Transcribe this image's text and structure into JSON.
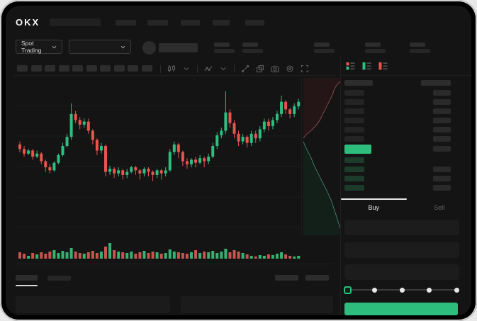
{
  "navbar": {
    "logo": "OKX",
    "nav_item_count": 5
  },
  "subheader": {
    "market_type_selector": {
      "label": "Spot Trading",
      "has_chevron": true
    },
    "pair_selector": {
      "value": "",
      "has_chevron": true
    },
    "stat_placeholder_count": 5
  },
  "toolbar": {
    "interval_placeholder_count": 10,
    "icons": [
      "divider",
      "candles-icon",
      "chevron-down-icon",
      "divider",
      "indicator-icon",
      "chevron-down-icon",
      "divider",
      "trendline-icon",
      "layers-icon",
      "camera-icon",
      "settings-icon",
      "fullscreen-icon"
    ]
  },
  "orderbook": {
    "view_mode_icons": [
      "book-split-icon",
      "book-bids-only-icon",
      "book-asks-only-icon"
    ],
    "ask_row_count": 6,
    "bid_row_count": 4,
    "bid_rows_with_amount": [
      1,
      2,
      3
    ],
    "last_price_highlight_color": "#2dbd7c"
  },
  "trade_panel": {
    "tabs": [
      {
        "label": "Buy",
        "active": true
      },
      {
        "label": "Sell",
        "active": false
      }
    ],
    "input_placeholder_count": 3,
    "slider_percents": [
      0,
      25,
      50,
      75,
      100
    ],
    "submit_button": {
      "label": "",
      "color": "#2dbd7c"
    }
  },
  "bottom_panel": {
    "tab_placeholder_count": 2,
    "active_tab_index": 0,
    "right_placeholder_count": 2,
    "content_placeholder_count": 2
  },
  "colors": {
    "app_bg": "#141414",
    "accent_green": "#2dbd7c",
    "candle_up": "#2ebd7f",
    "candle_down": "#e8544e",
    "depth_ask_line": "#9c5b57",
    "depth_ask_fill": "#241517",
    "depth_bid_line": "#4e8f7f",
    "depth_bid_fill": "#122019"
  },
  "chart_data": {
    "type": "candlestick",
    "title": "",
    "note": "No numeric axis labels visible (skeleton UI); OHLC values normalized to 0-100 price scale, left to right in time.",
    "grid_y_lines": 5,
    "ylim": [
      0,
      100
    ],
    "candles": [
      [
        61,
        58,
        56,
        63
      ],
      [
        58,
        55,
        53,
        60
      ],
      [
        55,
        57,
        54,
        58
      ],
      [
        57,
        53,
        51,
        58
      ],
      [
        53,
        55,
        52,
        57
      ],
      [
        55,
        50,
        48,
        56
      ],
      [
        50,
        46,
        43,
        51
      ],
      [
        46,
        44,
        42,
        48
      ],
      [
        44,
        49,
        43,
        50
      ],
      [
        49,
        54,
        48,
        55
      ],
      [
        54,
        60,
        53,
        62
      ],
      [
        60,
        66,
        59,
        68
      ],
      [
        66,
        81,
        64,
        88
      ],
      [
        81,
        77,
        75,
        83
      ],
      [
        77,
        74,
        71,
        79
      ],
      [
        74,
        76,
        72,
        78
      ],
      [
        76,
        70,
        68,
        78
      ],
      [
        70,
        64,
        61,
        71
      ],
      [
        64,
        57,
        54,
        65
      ],
      [
        57,
        60,
        55,
        62
      ],
      [
        60,
        43,
        40,
        61
      ],
      [
        43,
        45,
        41,
        47
      ],
      [
        45,
        42,
        39,
        46
      ],
      [
        42,
        44,
        40,
        46
      ],
      [
        44,
        41,
        38,
        45
      ],
      [
        41,
        43,
        39,
        45
      ],
      [
        43,
        46,
        42,
        47
      ],
      [
        46,
        44,
        41,
        47
      ],
      [
        44,
        42,
        38,
        45
      ],
      [
        42,
        45,
        40,
        46
      ],
      [
        45,
        43,
        40,
        46
      ],
      [
        43,
        41,
        37,
        44
      ],
      [
        41,
        44,
        39,
        45
      ],
      [
        44,
        42,
        38,
        45
      ],
      [
        42,
        44,
        40,
        46
      ],
      [
        44,
        56,
        43,
        58
      ],
      [
        56,
        61,
        54,
        63
      ],
      [
        61,
        56,
        52,
        62
      ],
      [
        56,
        50,
        47,
        57
      ],
      [
        50,
        48,
        45,
        52
      ],
      [
        48,
        51,
        46,
        52
      ],
      [
        51,
        49,
        46,
        53
      ],
      [
        49,
        52,
        48,
        54
      ],
      [
        52,
        50,
        46,
        53
      ],
      [
        50,
        53,
        48,
        55
      ],
      [
        53,
        60,
        52,
        62
      ],
      [
        60,
        67,
        58,
        69
      ],
      [
        67,
        70,
        65,
        72
      ],
      [
        70,
        82,
        68,
        96
      ],
      [
        82,
        75,
        72,
        84
      ],
      [
        75,
        68,
        65,
        77
      ],
      [
        68,
        63,
        60,
        70
      ],
      [
        63,
        66,
        61,
        68
      ],
      [
        66,
        62,
        59,
        67
      ],
      [
        62,
        68,
        60,
        70
      ],
      [
        68,
        65,
        62,
        70
      ],
      [
        65,
        71,
        63,
        73
      ],
      [
        71,
        76,
        69,
        78
      ],
      [
        76,
        73,
        70,
        78
      ],
      [
        73,
        77,
        71,
        79
      ],
      [
        77,
        81,
        75,
        83
      ],
      [
        81,
        89,
        79,
        93
      ],
      [
        89,
        84,
        81,
        90
      ],
      [
        84,
        81,
        78,
        85
      ],
      [
        81,
        86,
        79,
        88
      ],
      [
        86,
        89,
        84,
        91
      ]
    ],
    "volume": [
      9,
      7,
      4,
      8,
      6,
      9,
      7,
      10,
      12,
      8,
      11,
      9,
      15,
      10,
      8,
      7,
      9,
      11,
      8,
      10,
      17,
      22,
      12,
      10,
      9,
      8,
      10,
      7,
      9,
      11,
      8,
      10,
      9,
      7,
      8,
      13,
      10,
      9,
      8,
      7,
      9,
      12,
      8,
      10,
      9,
      11,
      8,
      10,
      14,
      9,
      12,
      10,
      8,
      6,
      4,
      3,
      5,
      4,
      6,
      5,
      7,
      9,
      6,
      4,
      3,
      4
    ],
    "depth": {
      "type": "area",
      "orientation": "vertical, attached right of price chart",
      "ask_curve": [
        [
          55,
          4
        ],
        [
          50,
          9
        ],
        [
          46,
          15
        ],
        [
          43,
          24
        ],
        [
          39,
          32
        ],
        [
          34,
          42
        ],
        [
          29,
          52
        ],
        [
          25,
          60
        ],
        [
          20,
          67
        ],
        [
          13,
          74
        ],
        [
          6,
          80
        ],
        [
          2,
          85
        ]
      ],
      "bid_curve": [
        [
          2,
          90
        ],
        [
          5,
          97
        ],
        [
          9,
          105
        ],
        [
          13,
          113
        ],
        [
          17,
          123
        ],
        [
          23,
          135
        ],
        [
          29,
          147
        ],
        [
          35,
          159
        ],
        [
          41,
          172
        ],
        [
          45,
          184
        ],
        [
          49,
          196
        ],
        [
          52,
          206
        ],
        [
          55,
          214
        ]
      ]
    }
  }
}
